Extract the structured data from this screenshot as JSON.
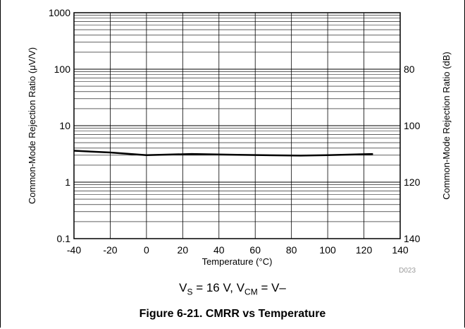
{
  "chart_data": {
    "type": "line",
    "x_axis": {
      "label": "Temperature (°C)",
      "range": [
        -40,
        140
      ],
      "ticks": [
        "-40",
        "-20",
        "0",
        "20",
        "40",
        "60",
        "80",
        "100",
        "120",
        "140"
      ]
    },
    "y_axis_left": {
      "label": "Common-Mode Rejection Ratio (μV/V)",
      "scale": "log",
      "range": [
        0.1,
        1000
      ],
      "ticks": [
        "0.1",
        "1",
        "10",
        "100",
        "1000"
      ]
    },
    "y_axis_right": {
      "label": "Common-Mode Rejection Ratio (dB)",
      "ticks": [
        "80",
        "100",
        "120",
        "140"
      ]
    },
    "series": [
      {
        "x": [
          -40,
          -20,
          0,
          25,
          50,
          85,
          100,
          125
        ],
        "y": [
          3.6,
          3.35,
          3.0,
          3.15,
          3.05,
          2.95,
          3.0,
          3.15
        ]
      }
    ],
    "grid": true,
    "code": "D023"
  },
  "condition": {
    "vs_label": "V",
    "vs_sub": "S",
    "vs_value": " = 16 V, V",
    "vcm_sub": "CM",
    "vcm_value": " = V–"
  },
  "caption": "Figure 6-21. CMRR vs Temperature"
}
